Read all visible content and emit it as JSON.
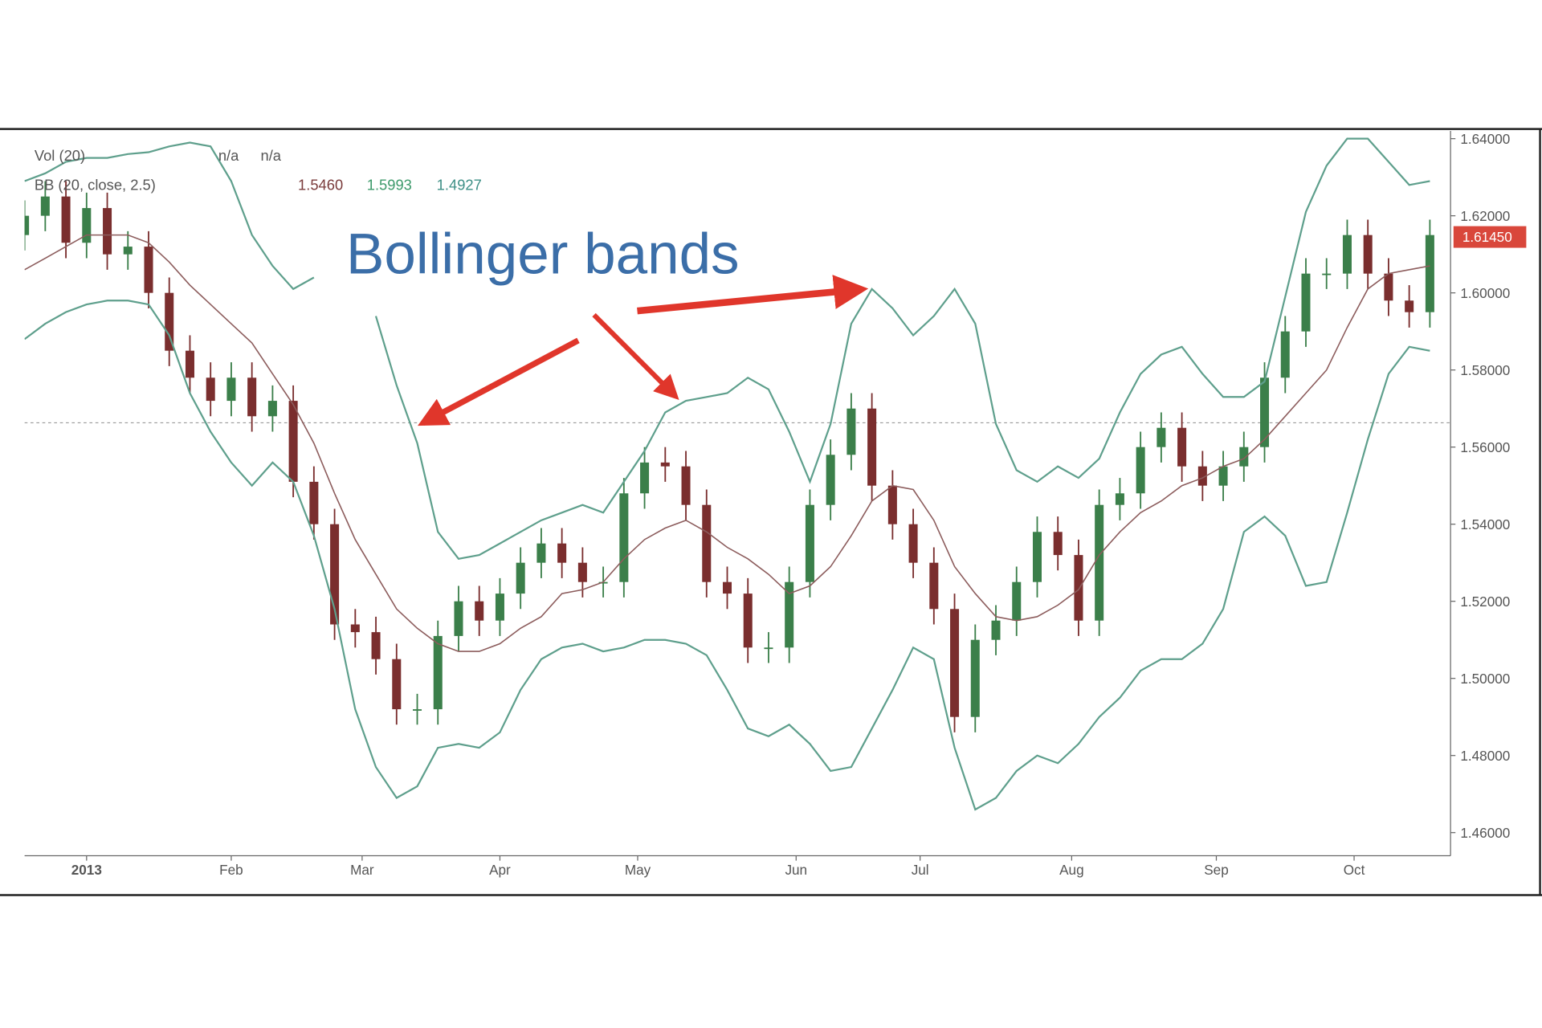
{
  "chart_data": {
    "type": "candlestick",
    "title": "Bollinger bands",
    "legend": {
      "vol_label": "Vol (20)",
      "vol_values": [
        "n/a",
        "n/a"
      ],
      "bb_label": "BB (20, close, 2.5)",
      "bb_values": [
        {
          "text": "1.5460",
          "color": "#7a3b3b"
        },
        {
          "text": "1.5993",
          "color": "#3d9a6b"
        },
        {
          "text": "1.4927",
          "color": "#3d8f86"
        }
      ]
    },
    "xlim": [
      0,
      207
    ],
    "xticks": [
      {
        "value": 9,
        "label": "2013"
      },
      {
        "value": 30,
        "label": "Feb"
      },
      {
        "value": 49,
        "label": "Mar"
      },
      {
        "value": 69,
        "label": "Apr"
      },
      {
        "value": 89,
        "label": "May"
      },
      {
        "value": 112,
        "label": "Jun"
      },
      {
        "value": 130,
        "label": "Jul"
      },
      {
        "value": 152,
        "label": "Aug"
      },
      {
        "value": 173,
        "label": "Sep"
      },
      {
        "value": 193,
        "label": "Oct"
      }
    ],
    "ylim": [
      1.454,
      1.642
    ],
    "yticks": [
      {
        "value": 1.46,
        "label": "1.46000"
      },
      {
        "value": 1.48,
        "label": "1.48000"
      },
      {
        "value": 1.5,
        "label": "1.50000"
      },
      {
        "value": 1.52,
        "label": "1.52000"
      },
      {
        "value": 1.54,
        "label": "1.54000"
      },
      {
        "value": 1.56,
        "label": "1.56000"
      },
      {
        "value": 1.58,
        "label": "1.58000"
      },
      {
        "value": 1.6,
        "label": "1.60000"
      },
      {
        "value": 1.62,
        "label": "1.62000"
      },
      {
        "value": 1.64,
        "label": "1.64000"
      }
    ],
    "reference_line": 1.5663,
    "current_price": {
      "value": 1.6145,
      "label": "1.61450",
      "color": "#d9473b"
    },
    "candles": {
      "up_color": "#3b7f4a",
      "down_color": "#7a2e2e",
      "x": [
        0,
        3,
        6,
        9,
        12,
        15,
        18,
        21,
        24,
        27,
        30,
        33,
        36,
        39,
        42,
        45,
        48,
        51,
        54,
        57,
        60,
        63,
        66,
        69,
        72,
        75,
        78,
        81,
        84,
        87,
        90,
        93,
        96,
        99,
        102,
        105,
        108,
        111,
        114,
        117,
        120,
        123,
        126,
        129,
        132,
        135,
        138,
        141,
        144,
        147,
        150,
        153,
        156,
        159,
        162,
        165,
        168,
        171,
        174,
        177,
        180,
        183,
        186,
        189,
        192,
        195,
        198,
        201,
        204
      ],
      "open": [
        1.615,
        1.62,
        1.625,
        1.613,
        1.622,
        1.61,
        1.612,
        1.6,
        1.585,
        1.578,
        1.572,
        1.578,
        1.568,
        1.572,
        1.551,
        1.54,
        1.514,
        1.512,
        1.505,
        1.492,
        1.492,
        1.511,
        1.52,
        1.515,
        1.522,
        1.53,
        1.535,
        1.53,
        1.525,
        1.525,
        1.548,
        1.556,
        1.555,
        1.545,
        1.525,
        1.522,
        1.508,
        1.508,
        1.525,
        1.545,
        1.558,
        1.57,
        1.55,
        1.54,
        1.53,
        1.518,
        1.49,
        1.51,
        1.515,
        1.525,
        1.538,
        1.532,
        1.515,
        1.545,
        1.548,
        1.56,
        1.565,
        1.555,
        1.55,
        1.555,
        1.56,
        1.578,
        1.59,
        1.605,
        1.605,
        1.615,
        1.605,
        1.598,
        1.595
      ],
      "high": [
        1.624,
        1.629,
        1.629,
        1.626,
        1.626,
        1.616,
        1.616,
        1.604,
        1.589,
        1.582,
        1.582,
        1.582,
        1.576,
        1.576,
        1.555,
        1.544,
        1.518,
        1.516,
        1.509,
        1.496,
        1.515,
        1.524,
        1.524,
        1.526,
        1.534,
        1.539,
        1.539,
        1.534,
        1.529,
        1.552,
        1.56,
        1.56,
        1.559,
        1.549,
        1.529,
        1.526,
        1.512,
        1.529,
        1.549,
        1.562,
        1.574,
        1.574,
        1.554,
        1.544,
        1.534,
        1.522,
        1.514,
        1.519,
        1.529,
        1.542,
        1.542,
        1.536,
        1.549,
        1.552,
        1.564,
        1.569,
        1.569,
        1.559,
        1.559,
        1.564,
        1.582,
        1.594,
        1.609,
        1.609,
        1.619,
        1.619,
        1.609,
        1.602,
        1.619
      ],
      "low": [
        1.611,
        1.616,
        1.609,
        1.609,
        1.606,
        1.606,
        1.596,
        1.581,
        1.574,
        1.568,
        1.568,
        1.564,
        1.564,
        1.547,
        1.536,
        1.51,
        1.508,
        1.501,
        1.488,
        1.488,
        1.488,
        1.507,
        1.511,
        1.511,
        1.518,
        1.526,
        1.526,
        1.521,
        1.521,
        1.521,
        1.544,
        1.551,
        1.541,
        1.521,
        1.518,
        1.504,
        1.504,
        1.504,
        1.521,
        1.541,
        1.554,
        1.546,
        1.536,
        1.526,
        1.514,
        1.486,
        1.486,
        1.506,
        1.511,
        1.521,
        1.528,
        1.511,
        1.511,
        1.541,
        1.544,
        1.556,
        1.551,
        1.546,
        1.546,
        1.551,
        1.556,
        1.574,
        1.586,
        1.601,
        1.601,
        1.601,
        1.594,
        1.591,
        1.591
      ],
      "close": [
        1.62,
        1.625,
        1.613,
        1.622,
        1.61,
        1.612,
        1.6,
        1.585,
        1.578,
        1.572,
        1.578,
        1.568,
        1.572,
        1.551,
        1.54,
        1.514,
        1.512,
        1.505,
        1.492,
        1.492,
        1.511,
        1.52,
        1.515,
        1.522,
        1.53,
        1.535,
        1.53,
        1.525,
        1.525,
        1.548,
        1.556,
        1.555,
        1.545,
        1.525,
        1.522,
        1.508,
        1.508,
        1.525,
        1.545,
        1.558,
        1.57,
        1.55,
        1.54,
        1.53,
        1.518,
        1.49,
        1.51,
        1.515,
        1.525,
        1.538,
        1.532,
        1.515,
        1.545,
        1.548,
        1.56,
        1.565,
        1.555,
        1.55,
        1.555,
        1.56,
        1.578,
        1.59,
        1.605,
        1.605,
        1.615,
        1.605,
        1.598,
        1.595,
        1.615
      ]
    },
    "bands": {
      "upper": {
        "color": "#5e9f8c",
        "values": [
          1.629,
          1.631,
          1.634,
          1.635,
          1.635,
          1.636,
          1.6365,
          1.638,
          1.639,
          1.638,
          1.629,
          1.615,
          1.607,
          1.601,
          1.604,
          null,
          null,
          1.594,
          1.576,
          1.561,
          1.538,
          1.531,
          1.532,
          1.535,
          1.538,
          1.541,
          1.543,
          1.545,
          1.543,
          1.551,
          1.559,
          1.569,
          1.572,
          1.573,
          1.574,
          1.578,
          1.575,
          1.564,
          1.551,
          1.566,
          1.592,
          1.601,
          1.596,
          1.589,
          1.594,
          1.601,
          1.592,
          1.566,
          1.554,
          1.551,
          1.555,
          1.552,
          1.557,
          1.569,
          1.579,
          1.584,
          1.586,
          1.579,
          1.573,
          1.573,
          1.577,
          1.599,
          1.621,
          1.633,
          1.64,
          1.64,
          1.634,
          1.628,
          1.629
        ]
      },
      "middle": {
        "color": "#8c5c5c",
        "values": [
          1.606,
          1.609,
          1.612,
          1.615,
          1.615,
          1.615,
          1.613,
          1.608,
          1.602,
          1.597,
          1.592,
          1.587,
          1.579,
          1.571,
          1.561,
          1.548,
          1.536,
          1.527,
          1.518,
          1.513,
          1.509,
          1.507,
          1.507,
          1.509,
          1.513,
          1.516,
          1.522,
          1.523,
          1.525,
          1.531,
          1.536,
          1.539,
          1.541,
          1.538,
          1.534,
          1.531,
          1.527,
          1.522,
          1.524,
          1.529,
          1.537,
          1.546,
          1.55,
          1.549,
          1.541,
          1.529,
          1.522,
          1.516,
          1.515,
          1.516,
          1.519,
          1.523,
          1.532,
          1.538,
          1.543,
          1.546,
          1.55,
          1.552,
          1.555,
          1.557,
          1.562,
          1.568,
          1.574,
          1.58,
          1.591,
          1.601,
          1.605,
          1.606,
          1.607
        ]
      },
      "lower": {
        "color": "#5e9f8c",
        "values": [
          1.588,
          1.592,
          1.595,
          1.597,
          1.598,
          1.598,
          1.597,
          1.589,
          1.574,
          1.564,
          1.556,
          1.55,
          1.556,
          1.551,
          1.537,
          1.518,
          1.492,
          1.477,
          1.469,
          1.472,
          1.482,
          1.483,
          1.482,
          1.486,
          1.497,
          1.505,
          1.508,
          1.509,
          1.507,
          1.508,
          1.51,
          1.51,
          1.509,
          1.506,
          1.497,
          1.487,
          1.485,
          1.488,
          1.483,
          1.476,
          1.477,
          1.487,
          1.497,
          1.508,
          1.505,
          1.482,
          1.466,
          1.469,
          1.476,
          1.48,
          1.478,
          1.483,
          1.49,
          1.495,
          1.502,
          1.505,
          1.505,
          1.509,
          1.518,
          1.538,
          1.542,
          1.537,
          1.524,
          1.525,
          1.543,
          1.562,
          1.579,
          1.586,
          1.585
        ]
      }
    }
  }
}
